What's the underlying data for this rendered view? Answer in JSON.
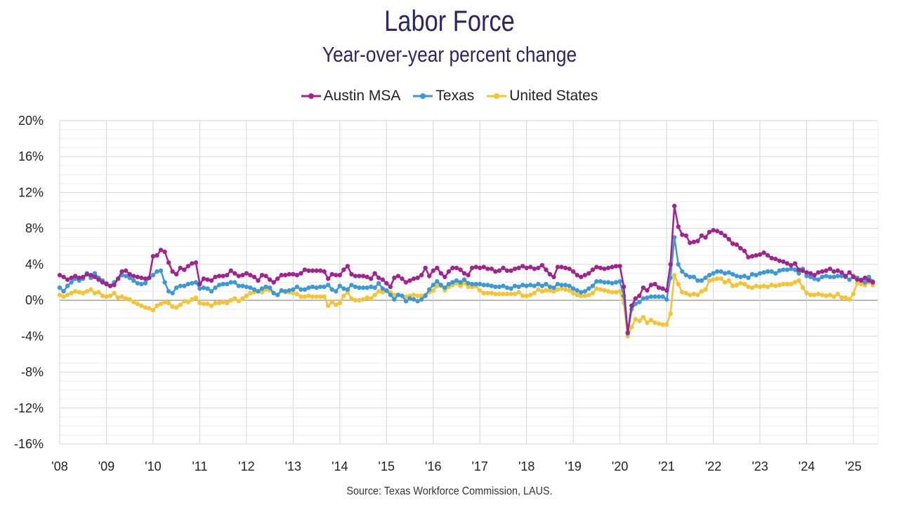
{
  "chart_data": {
    "type": "line",
    "title": "Labor Force",
    "subtitle": "Year-over-year percent change",
    "source": "Source: Texas Workforce Commission, LAUS.",
    "xlabel": "",
    "ylabel": "",
    "ylim": [
      -16,
      20
    ],
    "yticks": [
      20,
      16,
      12,
      8,
      4,
      0,
      -4,
      -8,
      -12,
      -16
    ],
    "ytick_labels": [
      "20%",
      "16%",
      "12%",
      "8%",
      "4%",
      "0%",
      "-4%",
      "-8%",
      "-12%",
      "-16%"
    ],
    "xticks": [
      "'08",
      "'09",
      "'10",
      "'11",
      "'12",
      "'13",
      "'14",
      "'15",
      "'16",
      "'17",
      "'18",
      "'19",
      "'20",
      "'21",
      "'22",
      "'23",
      "'24",
      "'25"
    ],
    "x_start": "2008-01",
    "frequency": "monthly",
    "grid": true,
    "legend_position": "top-center",
    "series": [
      {
        "name": "Austin MSA",
        "color": "#a3238e",
        "values": [
          2.8,
          2.6,
          2.3,
          2.5,
          2.7,
          2.5,
          2.6,
          2.9,
          2.8,
          2.6,
          2.3,
          2.0,
          1.8,
          1.6,
          1.7,
          2.4,
          3.2,
          3.3,
          2.9,
          2.7,
          2.6,
          2.5,
          2.4,
          2.5,
          4.9,
          5.0,
          5.6,
          5.4,
          4.2,
          3.2,
          2.9,
          3.6,
          3.4,
          3.8,
          4.1,
          4.2,
          1.8,
          2.4,
          2.3,
          2.2,
          2.6,
          2.7,
          2.7,
          2.8,
          3.3,
          3.0,
          2.7,
          2.8,
          3.0,
          2.8,
          2.6,
          2.2,
          2.8,
          2.7,
          2.3,
          2.0,
          2.4,
          2.8,
          2.8,
          2.9,
          2.9,
          2.8,
          3.0,
          3.4,
          3.3,
          3.3,
          3.3,
          3.3,
          3.2,
          2.4,
          2.9,
          2.8,
          2.8,
          3.4,
          3.8,
          2.9,
          2.7,
          2.7,
          2.7,
          2.6,
          2.4,
          3.0,
          2.5,
          2.3,
          1.9,
          1.5,
          2.5,
          2.7,
          2.4,
          2.0,
          2.2,
          2.4,
          2.5,
          2.8,
          3.6,
          2.7,
          3.3,
          3.6,
          3.0,
          2.6,
          3.2,
          3.6,
          3.6,
          3.4,
          3.0,
          2.8,
          3.6,
          3.7,
          3.6,
          3.7,
          3.5,
          3.5,
          3.2,
          3.3,
          3.6,
          3.3,
          3.3,
          3.5,
          3.6,
          3.8,
          3.6,
          3.7,
          3.5,
          3.6,
          3.9,
          3.4,
          2.9,
          2.6,
          3.7,
          3.7,
          3.6,
          3.5,
          3.2,
          2.8,
          2.6,
          2.8,
          3.0,
          3.4,
          3.7,
          3.6,
          3.5,
          3.6,
          3.7,
          3.8,
          3.8,
          1.5,
          -3.6,
          -0.6,
          0.2,
          0.5,
          1.4,
          1.1,
          1.7,
          1.8,
          1.4,
          1.3,
          1.1,
          4.0,
          10.5,
          8.2,
          7.3,
          7.2,
          6.4,
          6.5,
          6.6,
          7.2,
          7.0,
          7.6,
          7.8,
          7.7,
          7.5,
          7.2,
          6.8,
          6.3,
          6.2,
          5.8,
          5.5,
          4.8,
          4.9,
          5.0,
          5.1,
          5.3,
          5.0,
          4.7,
          4.6,
          4.4,
          4.3,
          4.1,
          3.9,
          4.1,
          3.4,
          3.3,
          3.1,
          3.0,
          2.8,
          3.1,
          3.2,
          3.3,
          3.5,
          3.2,
          3.3,
          3.1,
          2.7,
          3.1,
          2.6,
          2.3,
          2.2,
          2.5,
          2.2,
          2.0
        ]
      },
      {
        "name": "Texas",
        "color": "#3a9ad9",
        "values": [
          1.4,
          1.0,
          1.6,
          2.0,
          2.4,
          2.2,
          2.4,
          3.0,
          2.5,
          3.0,
          2.5,
          2.2,
          1.9,
          1.6,
          2.0,
          2.4,
          2.8,
          2.7,
          2.5,
          2.2,
          1.9,
          1.8,
          1.9,
          2.5,
          2.8,
          3.2,
          3.3,
          2.0,
          1.0,
          0.8,
          1.4,
          1.6,
          1.6,
          1.8,
          1.9,
          2.0,
          1.3,
          1.4,
          1.3,
          1.0,
          1.4,
          1.7,
          1.8,
          1.8,
          2.0,
          2.0,
          1.6,
          1.6,
          1.5,
          1.4,
          1.2,
          1.0,
          1.3,
          1.5,
          1.4,
          0.8,
          0.6,
          1.1,
          1.0,
          1.1,
          1.2,
          1.5,
          1.2,
          1.2,
          1.4,
          1.5,
          1.4,
          1.5,
          1.5,
          1.7,
          1.2,
          1.0,
          1.6,
          1.3,
          1.2,
          1.7,
          1.5,
          1.4,
          1.4,
          1.4,
          1.5,
          1.4,
          1.9,
          1.3,
          1.1,
          0.6,
          0.1,
          0.6,
          0.5,
          -0.1,
          0.2,
          0.1,
          -0.1,
          0.1,
          0.5,
          1.2,
          1.7,
          2.1,
          1.7,
          1.4,
          1.8,
          2.0,
          2.2,
          2.0,
          2.3,
          1.9,
          1.8,
          1.8,
          1.8,
          1.7,
          1.7,
          1.6,
          1.5,
          1.5,
          1.6,
          1.4,
          1.3,
          1.6,
          1.5,
          1.7,
          1.6,
          1.7,
          1.6,
          1.8,
          1.6,
          1.8,
          1.5,
          1.4,
          1.8,
          1.7,
          1.7,
          1.6,
          1.3,
          1.1,
          0.9,
          1.0,
          1.3,
          1.6,
          2.1,
          2.1,
          2.0,
          2.0,
          1.9,
          2.0,
          2.1,
          0.5,
          -3.7,
          -1.0,
          -0.4,
          -0.2,
          0.2,
          0.3,
          0.4,
          0.4,
          0.4,
          0.4,
          0.1,
          2.5,
          7.0,
          4.0,
          3.2,
          2.8,
          2.6,
          2.6,
          2.2,
          2.2,
          2.5,
          2.8,
          3.0,
          3.2,
          3.2,
          3.0,
          3.1,
          2.9,
          2.7,
          2.6,
          2.7,
          2.5,
          2.9,
          2.8,
          3.0,
          3.1,
          3.2,
          3.2,
          3.0,
          3.3,
          3.4,
          3.4,
          3.5,
          3.4,
          3.0,
          3.5,
          2.7,
          2.6,
          2.4,
          2.3,
          2.6,
          2.7,
          2.6,
          2.6,
          2.7,
          2.7,
          2.6,
          2.3,
          2.7,
          2.5,
          2.3,
          2.0,
          2.6,
          2.1
        ]
      },
      {
        "name": "United States",
        "color": "#f5c431",
        "values": [
          0.6,
          0.4,
          0.6,
          0.8,
          1.0,
          0.9,
          0.8,
          1.0,
          1.2,
          0.8,
          0.9,
          0.5,
          0.4,
          0.5,
          0.8,
          0.3,
          0.4,
          0.2,
          0.1,
          -0.2,
          -0.4,
          -0.6,
          -0.8,
          -0.9,
          -1.1,
          -0.6,
          -0.4,
          -0.2,
          -0.3,
          -0.7,
          -0.8,
          -0.5,
          -0.1,
          -0.2,
          0.1,
          0.3,
          -0.3,
          -0.4,
          -0.4,
          -0.6,
          -0.3,
          -0.3,
          -0.2,
          -0.3,
          0.0,
          0.2,
          -0.1,
          0.2,
          0.5,
          0.8,
          0.9,
          1.0,
          0.9,
          1.2,
          1.1,
          0.8,
          0.6,
          1.0,
          0.9,
          0.9,
          0.8,
          0.7,
          0.4,
          0.4,
          0.5,
          0.4,
          0.4,
          0.4,
          0.4,
          -0.6,
          -0.2,
          -0.5,
          -0.3,
          0.5,
          0.9,
          0.2,
          0.0,
          0.0,
          0.1,
          0.3,
          0.2,
          0.6,
          1.0,
          0.9,
          1.0,
          0.9,
          0.6,
          0.6,
          0.5,
          0.4,
          0.5,
          0.6,
          0.5,
          0.5,
          0.6,
          0.9,
          1.1,
          1.6,
          1.6,
          1.1,
          1.5,
          1.7,
          1.9,
          1.6,
          1.9,
          1.5,
          1.5,
          1.6,
          1.1,
          0.8,
          0.8,
          0.8,
          0.7,
          0.7,
          0.7,
          0.7,
          0.7,
          0.7,
          0.9,
          0.5,
          0.5,
          0.6,
          0.8,
          1.2,
          1.0,
          1.1,
          1.1,
          1.0,
          1.2,
          1.3,
          1.2,
          1.1,
          0.8,
          0.6,
          0.5,
          0.5,
          0.6,
          0.8,
          1.3,
          1.2,
          1.1,
          1.0,
          0.9,
          0.9,
          1.0,
          -0.3,
          -4.0,
          -3.0,
          -2.1,
          -2.3,
          -1.9,
          -2.5,
          -2.2,
          -2.5,
          -2.6,
          -2.7,
          -2.7,
          -1.5,
          2.8,
          1.8,
          0.9,
          0.8,
          0.6,
          0.7,
          0.6,
          1.0,
          1.2,
          2.2,
          2.3,
          2.4,
          2.4,
          2.0,
          2.2,
          1.6,
          1.7,
          1.9,
          1.8,
          1.5,
          1.4,
          1.6,
          1.5,
          1.6,
          1.5,
          1.7,
          1.6,
          1.7,
          1.8,
          1.8,
          1.8,
          2.0,
          2.2,
          1.4,
          0.8,
          0.6,
          0.6,
          0.7,
          0.6,
          0.5,
          0.6,
          0.4,
          0.7,
          0.3,
          0.3,
          0.1,
          0.7,
          1.9,
          1.8,
          1.7,
          2.0,
          1.7
        ]
      }
    ]
  }
}
